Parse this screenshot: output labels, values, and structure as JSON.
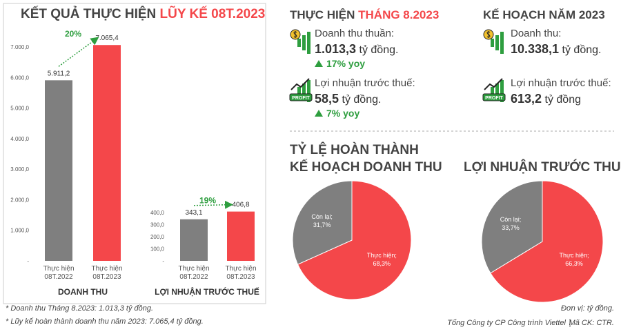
{
  "left_panel": {
    "title": "KẾT QUẢ THỰC HIỆN",
    "title_highlight": "LŨY KẾ 08T.2023"
  },
  "chart_data": [
    {
      "type": "bar",
      "categories": [
        "Thực hiện 08T.2022",
        "Thực hiện 08T.2023"
      ],
      "values": [
        5911.2,
        7065.4
      ],
      "value_labels": [
        "5.911,2",
        "7.065,4"
      ],
      "colors": [
        "#7f7f7f",
        "#f4474a"
      ],
      "ylim": [
        0,
        7500
      ],
      "yticks": [
        {
          "value": 0,
          "label": "-"
        },
        {
          "value": 1000,
          "label": "1.000,0"
        },
        {
          "value": 2000,
          "label": "2.000,0"
        },
        {
          "value": 3000,
          "label": "3.000,0"
        },
        {
          "value": 4000,
          "label": "4.000,0"
        },
        {
          "value": 5000,
          "label": "5.000,0"
        },
        {
          "value": 6000,
          "label": "6.000,0"
        },
        {
          "value": 7000,
          "label": "7.000,0"
        }
      ],
      "xlabel": "DOANH THU",
      "annotation": "20%"
    },
    {
      "type": "bar",
      "categories": [
        "Thực hiện 08T.2022",
        "Thực hiện 08T.2023"
      ],
      "values": [
        343.1,
        406.8
      ],
      "value_labels": [
        "343,1",
        "406,8"
      ],
      "colors": [
        "#7f7f7f",
        "#f4474a"
      ],
      "ylim": [
        0,
        450
      ],
      "yticks": [
        {
          "value": 0,
          "label": "-"
        },
        {
          "value": 100,
          "label": "100,0"
        },
        {
          "value": 200,
          "label": "200,0"
        },
        {
          "value": 300,
          "label": "300,0"
        },
        {
          "value": 400,
          "label": "400,0"
        }
      ],
      "xlabel": "LỢI NHUẬN TRƯỚC THUẾ",
      "annotation": "19%"
    },
    {
      "type": "pie",
      "title": "TỶ LỆ HOÀN THÀNH",
      "subtitle": "KẾ HOẠCH DOANH THU",
      "categories": [
        "Thực hiện;",
        "Còn lại;"
      ],
      "values": [
        68.3,
        31.7
      ],
      "value_labels": [
        "68,3%",
        "31,7%"
      ],
      "colors": [
        "#f4474a",
        "#7f7f7f"
      ]
    },
    {
      "type": "pie",
      "title": "LỢI NHUẬN TRƯỚC THUẾ",
      "categories": [
        "Thực hiện;",
        "Còn lại;"
      ],
      "values": [
        66.3,
        33.7
      ],
      "value_labels": [
        "66,3%",
        "33,7%"
      ],
      "colors": [
        "#f4474a",
        "#7f7f7f"
      ]
    }
  ],
  "monthly": {
    "title": "THỰC HIỆN",
    "title_highlight": "THÁNG 8.2023",
    "items": [
      {
        "label": "Doanh thu thuần:",
        "value": "1.013,3",
        "unit": "tỷ đồng.",
        "change": "17% yoy"
      },
      {
        "label": "Lợi nhuận trước thuế:",
        "value": "58,5",
        "unit": "tỷ đồng.",
        "change": "7% yoy",
        "icon_text": "PROFIT"
      }
    ]
  },
  "plan": {
    "title": "KẾ HOẠCH NĂM 2023",
    "items": [
      {
        "label": "Doanh thu:",
        "value": "10.338,1",
        "unit": "tỷ đồng."
      },
      {
        "label": "Lợi nhuận trước thuế:",
        "value": "613,2",
        "unit": "tỷ đồng",
        "icon_text": "PROFIT"
      }
    ]
  },
  "footnotes": [
    "* Doanh thu Tháng 8.2023: 1.013,3 tỷ đồng.",
    "* Lũy kế hoàn thành doanh thu năm 2023: 7.065,4 tỷ đồng."
  ],
  "unit_note": "Đơn vị: tỷ đồng.",
  "source": {
    "company": "Tổng Công ty CP Công trình Viettel",
    "ticker": "Mã CK: CTR."
  }
}
